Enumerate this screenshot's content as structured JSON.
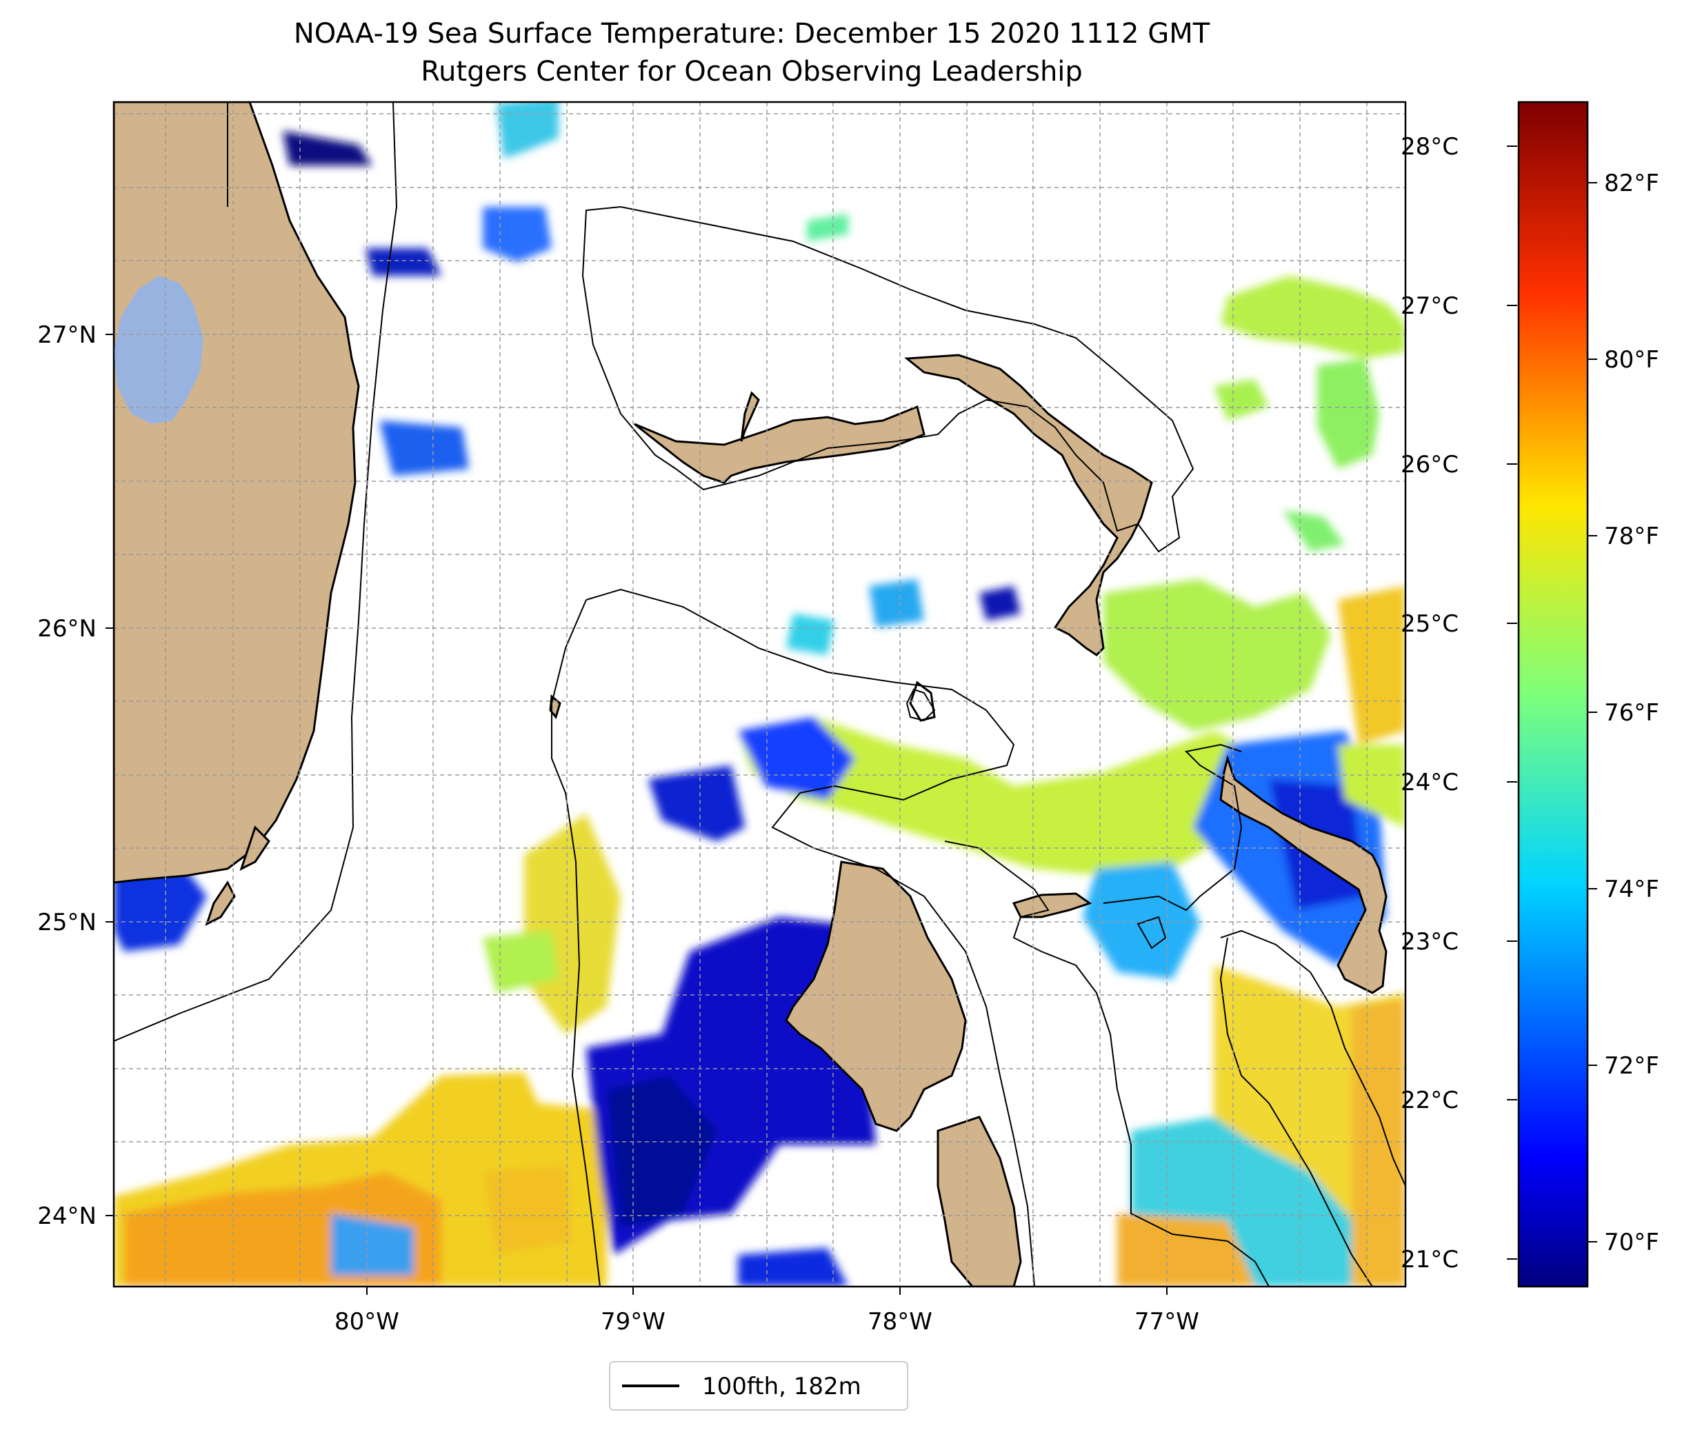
{
  "title": "NOAA-19 Sea Surface Temperature: December 15 2020 1112 GMT",
  "subtitle": "Rutgers Center for Ocean Observing Leadership",
  "map": {
    "lon_labels": [
      "80°W",
      "79°W",
      "78°W",
      "77°W"
    ],
    "lat_labels": [
      "27°N",
      "26°N",
      "25°N",
      "24°N"
    ],
    "graticule": "dashed gray",
    "land_color": "#d2b48c",
    "lake_color": "#99b3e0",
    "missing_color": "#ffffff",
    "colormap": "jet"
  },
  "legend": {
    "contour_label": "100fth, 182m",
    "contour_color": "#000000"
  },
  "colorbar": {
    "celsius_labels": [
      "28°C",
      "27°C",
      "26°C",
      "25°C",
      "24°C",
      "23°C",
      "22°C",
      "21°C"
    ],
    "fahrenheit_labels": [
      "82°F",
      "80°F",
      "78°F",
      "76°F",
      "74°F",
      "72°F",
      "70°F"
    ],
    "colors": [
      "#7f0000",
      "#ff0000",
      "#ff8000",
      "#ffff00",
      "#80ff80",
      "#00ffff",
      "#0080ff",
      "#0000ff",
      "#00007f"
    ]
  }
}
